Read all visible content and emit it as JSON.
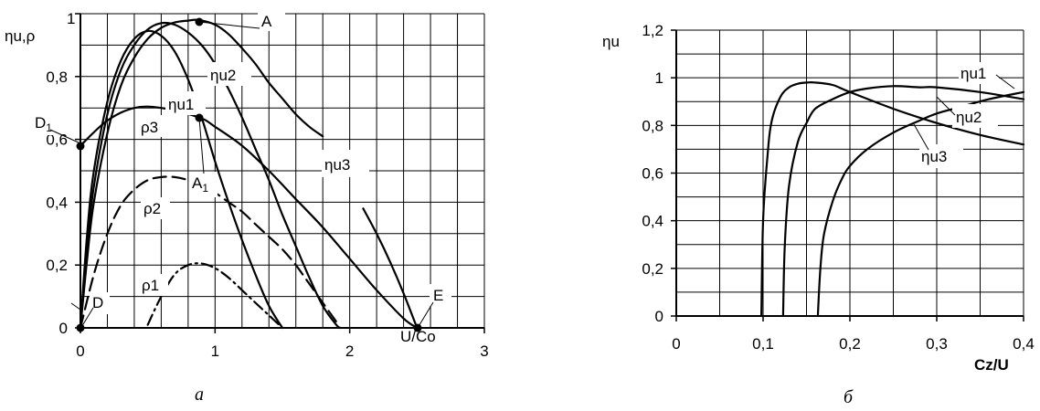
{
  "chart_data": [
    {
      "type": "line",
      "caption": "а",
      "xlabel": "U/Co",
      "ylabel": "ηu,ρ",
      "xlim": [
        0,
        3
      ],
      "ylim": [
        0,
        1
      ],
      "grid": true,
      "x_ticks": [
        "0",
        "1",
        "2",
        "3"
      ],
      "y_ticks": [
        "0",
        "0,2",
        "0,4",
        "0,6",
        "0,8",
        "1"
      ],
      "series": [
        {
          "name": "ηu1",
          "style": "solid",
          "x": [
            0,
            0.05,
            0.1,
            0.2,
            0.3,
            0.4,
            0.5,
            0.6,
            0.7,
            0.8,
            0.9,
            1.0,
            1.1,
            1.2,
            1.3,
            1.4,
            1.5
          ],
          "y": [
            0,
            0.3,
            0.5,
            0.72,
            0.85,
            0.92,
            0.945,
            0.93,
            0.88,
            0.79,
            0.67,
            0.53,
            0.4,
            0.28,
            0.17,
            0.07,
            0
          ]
        },
        {
          "name": "ηu2",
          "style": "solid",
          "x": [
            0,
            0.05,
            0.1,
            0.2,
            0.3,
            0.4,
            0.5,
            0.6,
            0.7,
            0.8,
            0.9,
            1.0,
            1.1,
            1.2,
            1.3,
            1.4,
            1.5,
            1.6,
            1.7,
            1.8,
            1.9,
            1.93
          ],
          "y": [
            0,
            0.26,
            0.45,
            0.68,
            0.82,
            0.9,
            0.95,
            0.97,
            0.965,
            0.94,
            0.9,
            0.84,
            0.76,
            0.67,
            0.57,
            0.47,
            0.36,
            0.26,
            0.16,
            0.07,
            0.01,
            0
          ]
        },
        {
          "name": "ηu3",
          "style": "solid",
          "x": [
            0,
            0.05,
            0.1,
            0.2,
            0.3,
            0.4,
            0.5,
            0.6,
            0.7,
            0.8,
            0.88,
            1.0,
            1.1,
            1.2,
            1.3,
            1.4,
            1.5,
            1.6,
            1.7,
            1.8
          ],
          "y": [
            0,
            0.22,
            0.4,
            0.62,
            0.77,
            0.86,
            0.92,
            0.955,
            0.972,
            0.978,
            0.98,
            0.965,
            0.935,
            0.89,
            0.84,
            0.78,
            0.73,
            0.68,
            0.64,
            0.61
          ]
        },
        {
          "name": "ηu3",
          "style": "solid",
          "x": [
            2.1,
            2.2,
            2.3,
            2.4,
            2.5
          ],
          "y": [
            0.38,
            0.3,
            0.21,
            0.11,
            0
          ]
        },
        {
          "name": "ρ3",
          "style": "solid",
          "x": [
            0,
            0.2,
            0.4,
            0.6,
            0.88,
            1.0,
            1.2,
            1.4,
            1.6,
            1.8,
            2.0,
            2.2,
            2.4,
            2.5
          ],
          "y": [
            0.58,
            0.66,
            0.7,
            0.7,
            0.67,
            0.64,
            0.58,
            0.5,
            0.41,
            0.32,
            0.22,
            0.12,
            0.03,
            0
          ]
        },
        {
          "name": "ρ2",
          "style": "dashed",
          "x": [
            0,
            0.1,
            0.2,
            0.3,
            0.4,
            0.5,
            0.6,
            0.7,
            0.8,
            0.9,
            1.0,
            1.1,
            1.2,
            1.3,
            1.4,
            1.5,
            1.6,
            1.7,
            1.8,
            1.9
          ],
          "y": [
            0,
            0.17,
            0.3,
            0.39,
            0.44,
            0.47,
            0.48,
            0.48,
            0.47,
            0.45,
            0.43,
            0.4,
            0.37,
            0.33,
            0.29,
            0.25,
            0.2,
            0.14,
            0.08,
            0.02
          ]
        },
        {
          "name": "ρ1",
          "style": "dashdot",
          "x": [
            0.5,
            0.6,
            0.7,
            0.8,
            0.9,
            1.0,
            1.1,
            1.2,
            1.3,
            1.4,
            1.5
          ],
          "y": [
            0.01,
            0.1,
            0.17,
            0.2,
            0.205,
            0.19,
            0.16,
            0.12,
            0.08,
            0.04,
            0
          ]
        }
      ],
      "points": [
        {
          "label": "A",
          "x": 0.88,
          "y": 0.98
        },
        {
          "label": "A1",
          "x": 0.88,
          "y": 0.67
        },
        {
          "label": "D1",
          "x": 0,
          "y": 0.58
        },
        {
          "label": "D",
          "x": 0,
          "y": 0
        },
        {
          "label": "E",
          "x": 2.5,
          "y": 0
        }
      ]
    },
    {
      "type": "line",
      "caption": "б",
      "xlabel": "Cz/U",
      "ylabel": "ηu",
      "xlim": [
        0,
        0.4
      ],
      "ylim": [
        0,
        1.2
      ],
      "grid": true,
      "x_ticks": [
        "0",
        "0,1",
        "0,2",
        "0,3",
        "0,4"
      ],
      "y_ticks": [
        "0",
        "0,2",
        "0,4",
        "0,6",
        "0,8",
        "1",
        "1,2"
      ],
      "series": [
        {
          "name": "ηu1",
          "style": "solid",
          "x": [
            0.098,
            0.1,
            0.105,
            0.11,
            0.12,
            0.13,
            0.14,
            0.15,
            0.16,
            0.18,
            0.2,
            0.25,
            0.3,
            0.35,
            0.4
          ],
          "y": [
            0,
            0.4,
            0.67,
            0.82,
            0.92,
            0.96,
            0.975,
            0.98,
            0.98,
            0.97,
            0.94,
            0.87,
            0.81,
            0.76,
            0.72
          ]
        },
        {
          "name": "ηu2",
          "style": "solid",
          "x": [
            0.123,
            0.125,
            0.13,
            0.14,
            0.15,
            0.16,
            0.18,
            0.2,
            0.22,
            0.25,
            0.28,
            0.3,
            0.35,
            0.4
          ],
          "y": [
            0,
            0.3,
            0.55,
            0.73,
            0.81,
            0.87,
            0.91,
            0.94,
            0.955,
            0.965,
            0.96,
            0.96,
            0.94,
            0.91
          ]
        },
        {
          "name": "ηu3",
          "style": "solid",
          "x": [
            0.163,
            0.166,
            0.17,
            0.18,
            0.19,
            0.2,
            0.22,
            0.25,
            0.28,
            0.3,
            0.33,
            0.36,
            0.4
          ],
          "y": [
            0,
            0.2,
            0.34,
            0.48,
            0.57,
            0.63,
            0.7,
            0.77,
            0.82,
            0.85,
            0.88,
            0.91,
            0.94
          ]
        }
      ]
    }
  ],
  "labels": {
    "A": "A",
    "A1_base": "A",
    "A1_sub": "1",
    "D": "D",
    "D1_base": "D",
    "D1_sub": "1",
    "E": "E",
    "left_u1": "ηu1",
    "left_u2": "ηu2",
    "left_u3": "ηu3",
    "rho3": "ρ3",
    "rho2": "ρ2",
    "rho1": "ρ1",
    "right_u1": "ηu1",
    "right_u2": "ηu2",
    "right_u3": "ηu3"
  }
}
